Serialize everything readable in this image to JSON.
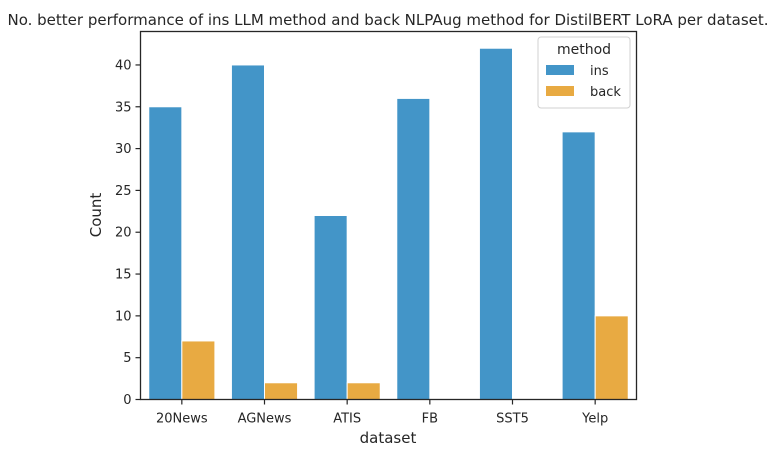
{
  "chart_data": {
    "type": "bar",
    "title": "No. better performance of ins LLM method and back NLPAug method for DistilBERT LoRA per dataset.",
    "xlabel": "dataset",
    "ylabel": "Count",
    "categories": [
      "20News",
      "AGNews",
      "ATIS",
      "FB",
      "SST5",
      "Yelp"
    ],
    "series": [
      {
        "name": "ins",
        "color": "#4395c8",
        "values": [
          35,
          40,
          22,
          36,
          42,
          32
        ]
      },
      {
        "name": "back",
        "color": "#e8aa42",
        "values": [
          7,
          2,
          2,
          0,
          0,
          10
        ]
      }
    ],
    "ylim": [
      0,
      44
    ],
    "yticks": [
      0,
      5,
      10,
      15,
      20,
      25,
      30,
      35,
      40
    ],
    "grid": false,
    "legend": {
      "title": "method",
      "placement": "top-right"
    }
  }
}
